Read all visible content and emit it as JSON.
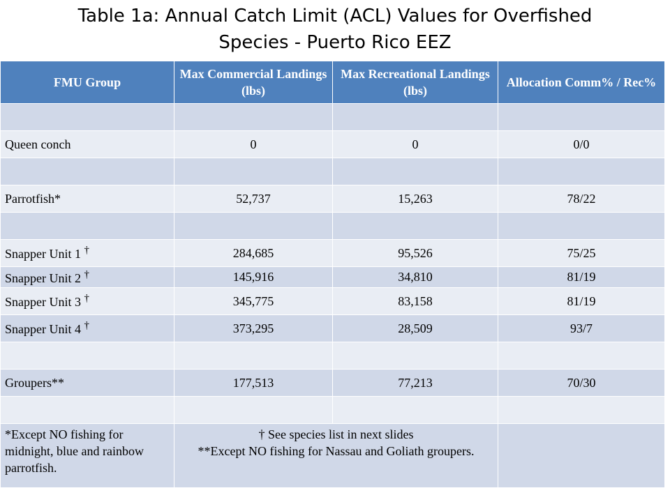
{
  "title": {
    "line1": "Table 1a:  Annual Catch Limit (ACL) Values for Overfished",
    "line2": "Species - Puerto Rico EEZ"
  },
  "table": {
    "headers": [
      "FMU Group",
      "Max Commercial Landings (lbs)",
      "Max Recreational Landings (lbs)",
      "Allocation Comm% / Rec%"
    ],
    "rows": [
      {
        "group": "",
        "commercial": "",
        "recreational": "",
        "allocation": ""
      },
      {
        "group": "Queen conch",
        "commercial": "0",
        "recreational": "0",
        "allocation": "0/0"
      },
      {
        "group": "",
        "commercial": "",
        "recreational": "",
        "allocation": ""
      },
      {
        "group": "Parrotfish*",
        "commercial": "52,737",
        "recreational": "15,263",
        "allocation": "78/22"
      },
      {
        "group": "",
        "commercial": "",
        "recreational": "",
        "allocation": ""
      },
      {
        "group": "Snapper Unit 1",
        "mark": "†",
        "commercial": "284,685",
        "recreational": "95,526",
        "allocation": "75/25"
      },
      {
        "group": "Snapper Unit 2",
        "mark": "†",
        "commercial": "145,916",
        "recreational": "34,810",
        "allocation": "81/19"
      },
      {
        "group": "Snapper Unit 3",
        "mark": "†",
        "commercial": "345,775",
        "recreational": "83,158",
        "allocation": "81/19"
      },
      {
        "group": "Snapper Unit 4",
        "mark": "†",
        "commercial": "373,295",
        "recreational": "28,509",
        "allocation": "93/7"
      },
      {
        "group": "",
        "commercial": "",
        "recreational": "",
        "allocation": ""
      },
      {
        "group": "Groupers**",
        "commercial": "177,513",
        "recreational": "77,213",
        "allocation": "70/30"
      },
      {
        "group": "",
        "commercial": "",
        "recreational": "",
        "allocation": ""
      }
    ],
    "footnotes": {
      "parrotfish": "*Except NO fishing for midnight, blue and rainbow parrotfish.",
      "species_list": "† See species list in next slides",
      "groupers": "**Except NO fishing for Nassau and Goliath groupers."
    }
  },
  "colors": {
    "header_bg": "#4f81bd",
    "row_dark": "#d0d8e8",
    "row_light": "#e9edf4"
  }
}
